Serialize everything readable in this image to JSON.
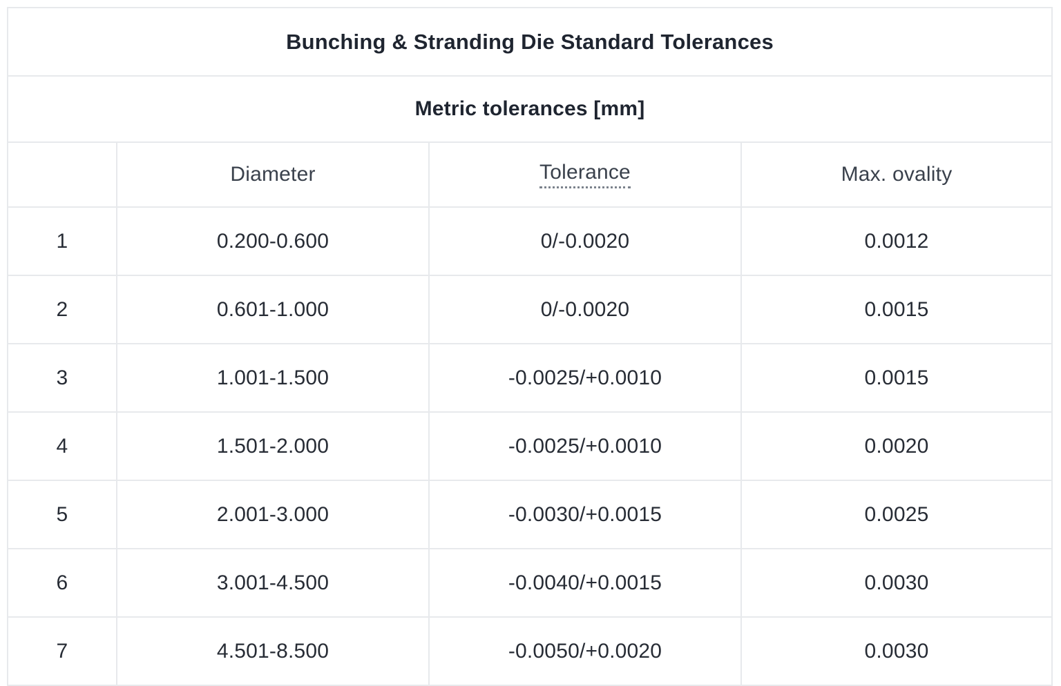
{
  "table": {
    "title": "Bunching & Stranding Die Standard Tolerances",
    "subtitle": "Metric tolerances [mm]",
    "columns": {
      "index": "",
      "diameter": "Diameter",
      "tolerance": "Tolerance",
      "max_ovality": "Max. ovality"
    },
    "rows": [
      {
        "index": "1",
        "diameter": "0.200-0.600",
        "tolerance": "0/-0.0020",
        "max_ovality": "0.0012"
      },
      {
        "index": "2",
        "diameter": "0.601-1.000",
        "tolerance": "0/-0.0020",
        "max_ovality": "0.0015"
      },
      {
        "index": "3",
        "diameter": "1.001-1.500",
        "tolerance": "-0.0025/+0.0010",
        "max_ovality": "0.0015"
      },
      {
        "index": "4",
        "diameter": "1.501-2.000",
        "tolerance": "-0.0025/+0.0010",
        "max_ovality": "0.0020"
      },
      {
        "index": "5",
        "diameter": "2.001-3.000",
        "tolerance": "-0.0030/+0.0015",
        "max_ovality": "0.0025"
      },
      {
        "index": "6",
        "diameter": "3.001-4.500",
        "tolerance": "-0.0040/+0.0015",
        "max_ovality": "0.0030"
      },
      {
        "index": "7",
        "diameter": "4.501-8.500",
        "tolerance": "-0.0050/+0.0020",
        "max_ovality": "0.0030"
      }
    ]
  },
  "colors": {
    "grid_line": "#e7e9ec",
    "outer_border": "#dcdfe3",
    "text": "#272c35",
    "header_text": "#3a414c",
    "dotted_underline": "#7b828c",
    "background": "#ffffff"
  }
}
